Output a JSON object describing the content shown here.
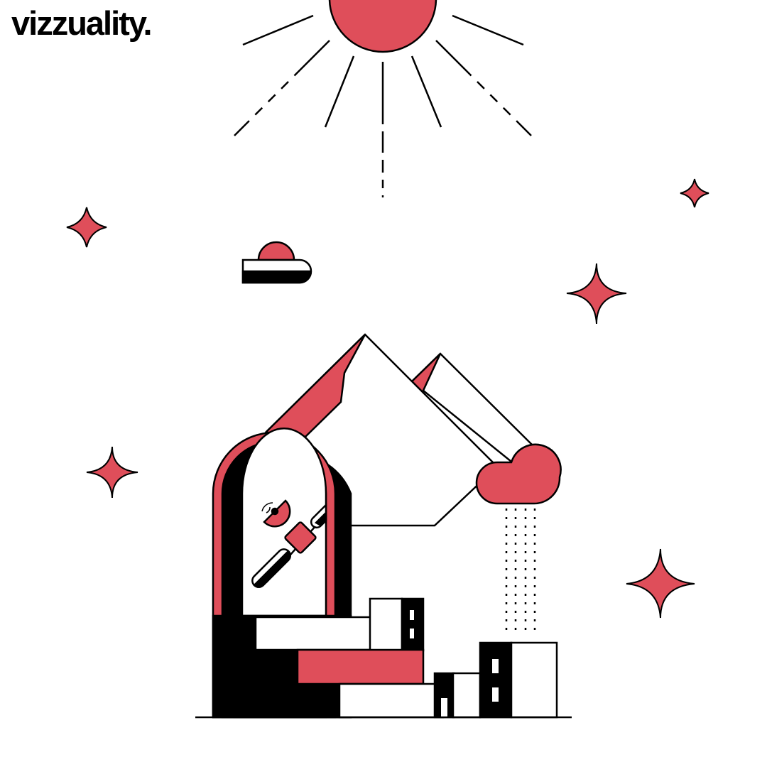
{
  "brand": {
    "name": "vizzuality."
  },
  "colors": {
    "accent": "#DF4E5A",
    "ink": "#000000",
    "paper": "#FFFFFF"
  },
  "icons": [
    "sun-icon",
    "sparkle-icon",
    "cloud-icon",
    "rain-cloud-icon",
    "mountain-icon",
    "archway-icon",
    "satellite-icon",
    "city-buildings-icon"
  ]
}
